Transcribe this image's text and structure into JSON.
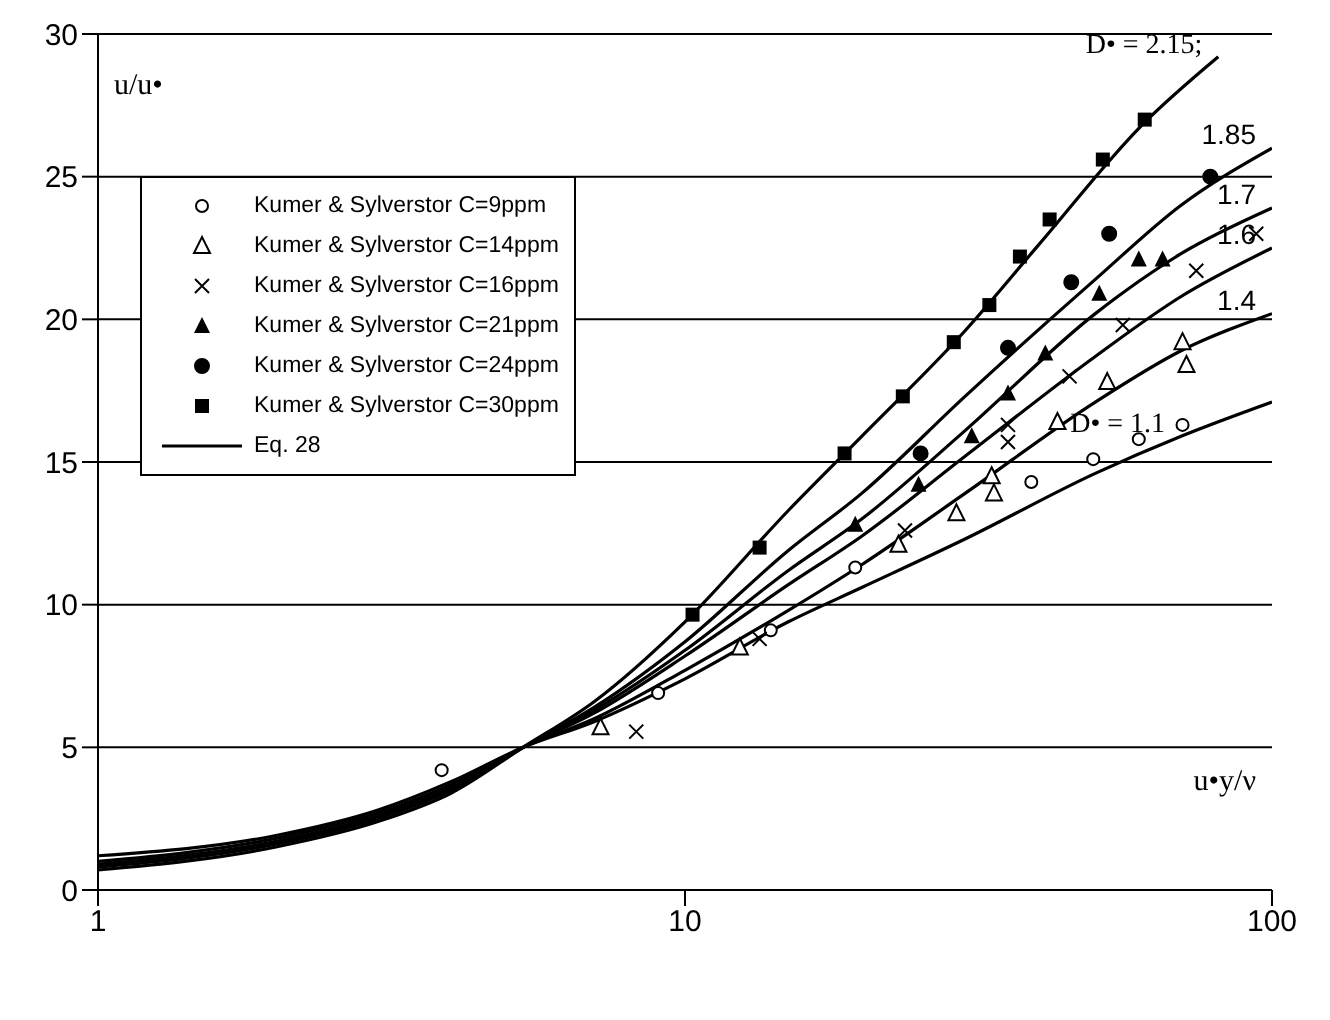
{
  "chart_data": {
    "type": "scatter",
    "xlabel": "u•y/ν",
    "ylabel": "u/u•",
    "log": "x",
    "xlim": [
      1,
      100
    ],
    "xticks": [
      1,
      10,
      100
    ],
    "ylim": [
      0,
      30
    ],
    "yticks": [
      0,
      5,
      10,
      15,
      20,
      25,
      30
    ],
    "grid": "y",
    "legend": "top left",
    "series": [
      {
        "name": "Kumer & Sylverstor C=9ppm",
        "color": "#000000",
        "marker": "circle-open",
        "x": [
          3.85,
          9.0,
          14.0,
          19.5,
          38.9,
          49.6,
          59.3,
          70.4
        ],
        "values": [
          4.2,
          6.9,
          9.1,
          11.3,
          14.3,
          15.1,
          15.8,
          16.3
        ]
      },
      {
        "name": "Kumer & Sylverstor C=14ppm",
        "color": "#000000",
        "marker": "triangle-open",
        "x": [
          7.18,
          12.4,
          23.1,
          29,
          33.3,
          33.6,
          43.1,
          52.4,
          70.4,
          71.5
        ],
        "values": [
          5.7,
          8.5,
          12.1,
          13.2,
          14.5,
          13.9,
          16.4,
          17.8,
          19.2,
          18.4
        ]
      },
      {
        "name": "Kumer & Sylverstor C=16ppm",
        "color": "#000000",
        "marker": "cross",
        "x": [
          8.26,
          13.4,
          23.7,
          35.5,
          35.5,
          45.2,
          55.7,
          74.3,
          94
        ],
        "values": [
          5.55,
          8.8,
          12.6,
          16.3,
          15.7,
          18.0,
          19.8,
          21.7,
          23.0
        ]
      },
      {
        "name": "Kumer & Sylverstor C=21ppm",
        "color": "#000000",
        "marker": "triangle",
        "x": [
          19.5,
          25,
          30.8,
          35.5,
          41.1,
          50.8,
          59.3,
          65.1
        ],
        "values": [
          12.8,
          14.2,
          15.9,
          17.4,
          18.8,
          20.9,
          22.1,
          22.1
        ]
      },
      {
        "name": "Kumer & Sylverstor C=24ppm",
        "color": "#000000",
        "marker": "circle",
        "x": [
          25.2,
          35.5,
          45.5,
          52.8,
          78.5
        ],
        "values": [
          15.3,
          19.0,
          21.3,
          23.0,
          25.0
        ]
      },
      {
        "name": "Kumer & Sylverstor C=30ppm",
        "color": "#000000",
        "marker": "square",
        "x": [
          10.3,
          13.4,
          18.7,
          23.5,
          28.7,
          33.0,
          37.2,
          41.8,
          51.5,
          60.7
        ],
        "values": [
          9.65,
          12.0,
          15.3,
          17.3,
          19.2,
          20.5,
          22.2,
          23.5,
          25.6,
          27.0
        ]
      },
      {
        "name": "Eq. 28",
        "type": "line",
        "color": "#000000",
        "marker": "none",
        "line_style": "solid",
        "x": [
          1,
          2,
          3,
          4,
          5.3,
          7,
          10,
          15,
          20,
          30,
          40,
          60,
          81
        ],
        "values": [
          0.7,
          1.5,
          2.4,
          3.4,
          5,
          6.6,
          9.4,
          13.3,
          15.9,
          19.6,
          22.6,
          26.8,
          29.2
        ]
      },
      {
        "type": "line",
        "color": "#000000",
        "marker": "none",
        "line_style": "solid",
        "x": [
          1,
          2,
          3,
          4,
          5.3,
          7,
          10,
          15,
          20,
          30,
          50,
          70,
          100
        ],
        "values": [
          0.8,
          1.6,
          2.5,
          3.5,
          5,
          6.4,
          8.7,
          11.9,
          13.9,
          17.3,
          21.4,
          24,
          26
        ]
      },
      {
        "type": "line",
        "color": "#000000",
        "marker": "none",
        "line_style": "solid",
        "x": [
          1,
          2,
          3,
          4,
          5.3,
          7,
          10,
          15,
          20,
          30,
          50,
          70,
          100
        ],
        "values": [
          0.85,
          1.65,
          2.55,
          3.55,
          5,
          6.3,
          8.4,
          11.2,
          13,
          16.1,
          20.2,
          22.3,
          23.9
        ]
      },
      {
        "type": "line",
        "color": "#000000",
        "marker": "none",
        "line_style": "solid",
        "x": [
          1,
          2,
          3,
          4,
          5.3,
          7,
          10,
          15,
          20,
          30,
          50,
          70,
          100
        ],
        "values": [
          0.9,
          1.7,
          2.6,
          3.6,
          5,
          6.2,
          8.2,
          10.7,
          12.4,
          15.2,
          18.7,
          20.8,
          22.5
        ]
      },
      {
        "type": "line",
        "color": "#000000",
        "marker": "none",
        "line_style": "solid",
        "x": [
          1,
          2,
          3,
          4,
          5.3,
          7,
          10,
          15,
          20,
          30,
          50,
          70,
          100
        ],
        "values": [
          1,
          1.8,
          2.7,
          3.7,
          5,
          6,
          7.7,
          9.8,
          11.4,
          13.9,
          17.1,
          18.9,
          20.2
        ]
      },
      {
        "type": "line",
        "color": "#000000",
        "marker": "none",
        "line_style": "solid",
        "x": [
          1,
          2,
          3,
          4,
          5.3,
          7,
          10,
          15,
          20,
          30,
          50,
          70,
          100
        ],
        "values": [
          1.2,
          1.9,
          2.8,
          3.8,
          5,
          5.9,
          7.4,
          9.4,
          10.6,
          12.3,
          14.6,
          15.9,
          17.1
        ]
      }
    ],
    "annotations": [
      {
        "text": "D• = 2.15;",
        "x": 81,
        "y": 29.2
      },
      {
        "text": "1.85",
        "x": 100,
        "y": 26
      },
      {
        "text": "1.7",
        "x": 100,
        "y": 23.9
      },
      {
        "text": "1.6",
        "x": 100,
        "y": 22.5
      },
      {
        "text": "1.4",
        "x": 100,
        "y": 20.2
      },
      {
        "text": "D• = 1.1",
        "x": 70,
        "y": 15.9
      }
    ]
  }
}
